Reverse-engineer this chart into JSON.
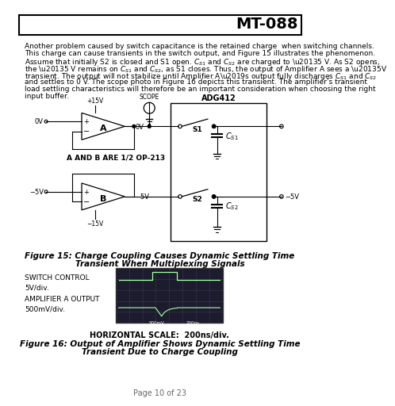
{
  "title": "MT-088",
  "page_footer": "Page 10 of 23",
  "body_text_lines": [
    "Another problem caused by switch capacitance is the retained charge  when switching channels.",
    "This charge can cause transients in the switch output, and Figure 15 illustrates the phenomenon.",
    "Assume that initially S2 is closed and S1 open. C  and C   are charged to –5 V. As S2 opens,",
    "the –5 V remains on C   and C  , as S1 closes. Thus, the output of Amplifier A sees a –5V",
    "transient. The output will not stabilize until Amplifier A’s output fully discharges C   and C",
    "and settles to 0 V. The scope photo in Figure 16 depicts this transient. The amplifier’s transient",
    "load settling characteristics will therefore be an important consideration when choosing the right",
    "input buffer."
  ],
  "fig15_caption_line1": "Figure 15: Charge Coupling Causes Dynamic Settling Time",
  "fig15_caption_line2": "Transient When Multiplexing Signals",
  "fig16_caption_line1": "Figure 16: Output of Amplifier Shows Dynamic Settling Time",
  "fig16_caption_line2": "Transient Due to Charge Coupling",
  "switch_control_label": "SWITCH CONTROL\n5V/div.",
  "amp_output_label": "AMPLIFIER A OUTPUT\n500mV/div.",
  "horiz_scale_label": "HORIZONTAL SCALE:  200ns/div.",
  "bg_color": "#ffffff",
  "black": "#000000",
  "gray_footer": "#666666"
}
